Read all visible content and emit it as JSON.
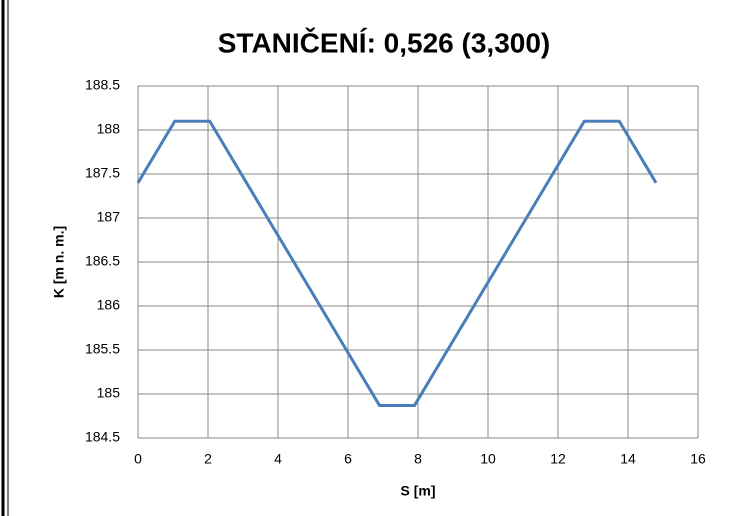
{
  "chart_data": {
    "type": "line",
    "title": "STANIČENÍ: 0,526 (3,300)",
    "x_label": "S [m]",
    "y_label": "K [m n. m.]",
    "x": [
      0,
      1.05,
      2.05,
      6.9,
      7.9,
      12.75,
      13.75,
      14.8
    ],
    "series": [
      {
        "name": "K",
        "color": "#4a7ebb",
        "values": [
          187.4,
          188.1,
          188.1,
          184.87,
          184.87,
          188.1,
          188.1,
          187.4
        ]
      }
    ],
    "xlim": [
      0,
      16
    ],
    "xticks": [
      0,
      2,
      4,
      6,
      8,
      10,
      12,
      14,
      16
    ],
    "ylim": [
      184.5,
      188.5
    ],
    "yticks": [
      184.5,
      185,
      185.5,
      186,
      186.5,
      187,
      187.5,
      188,
      188.5
    ],
    "grid": true
  }
}
